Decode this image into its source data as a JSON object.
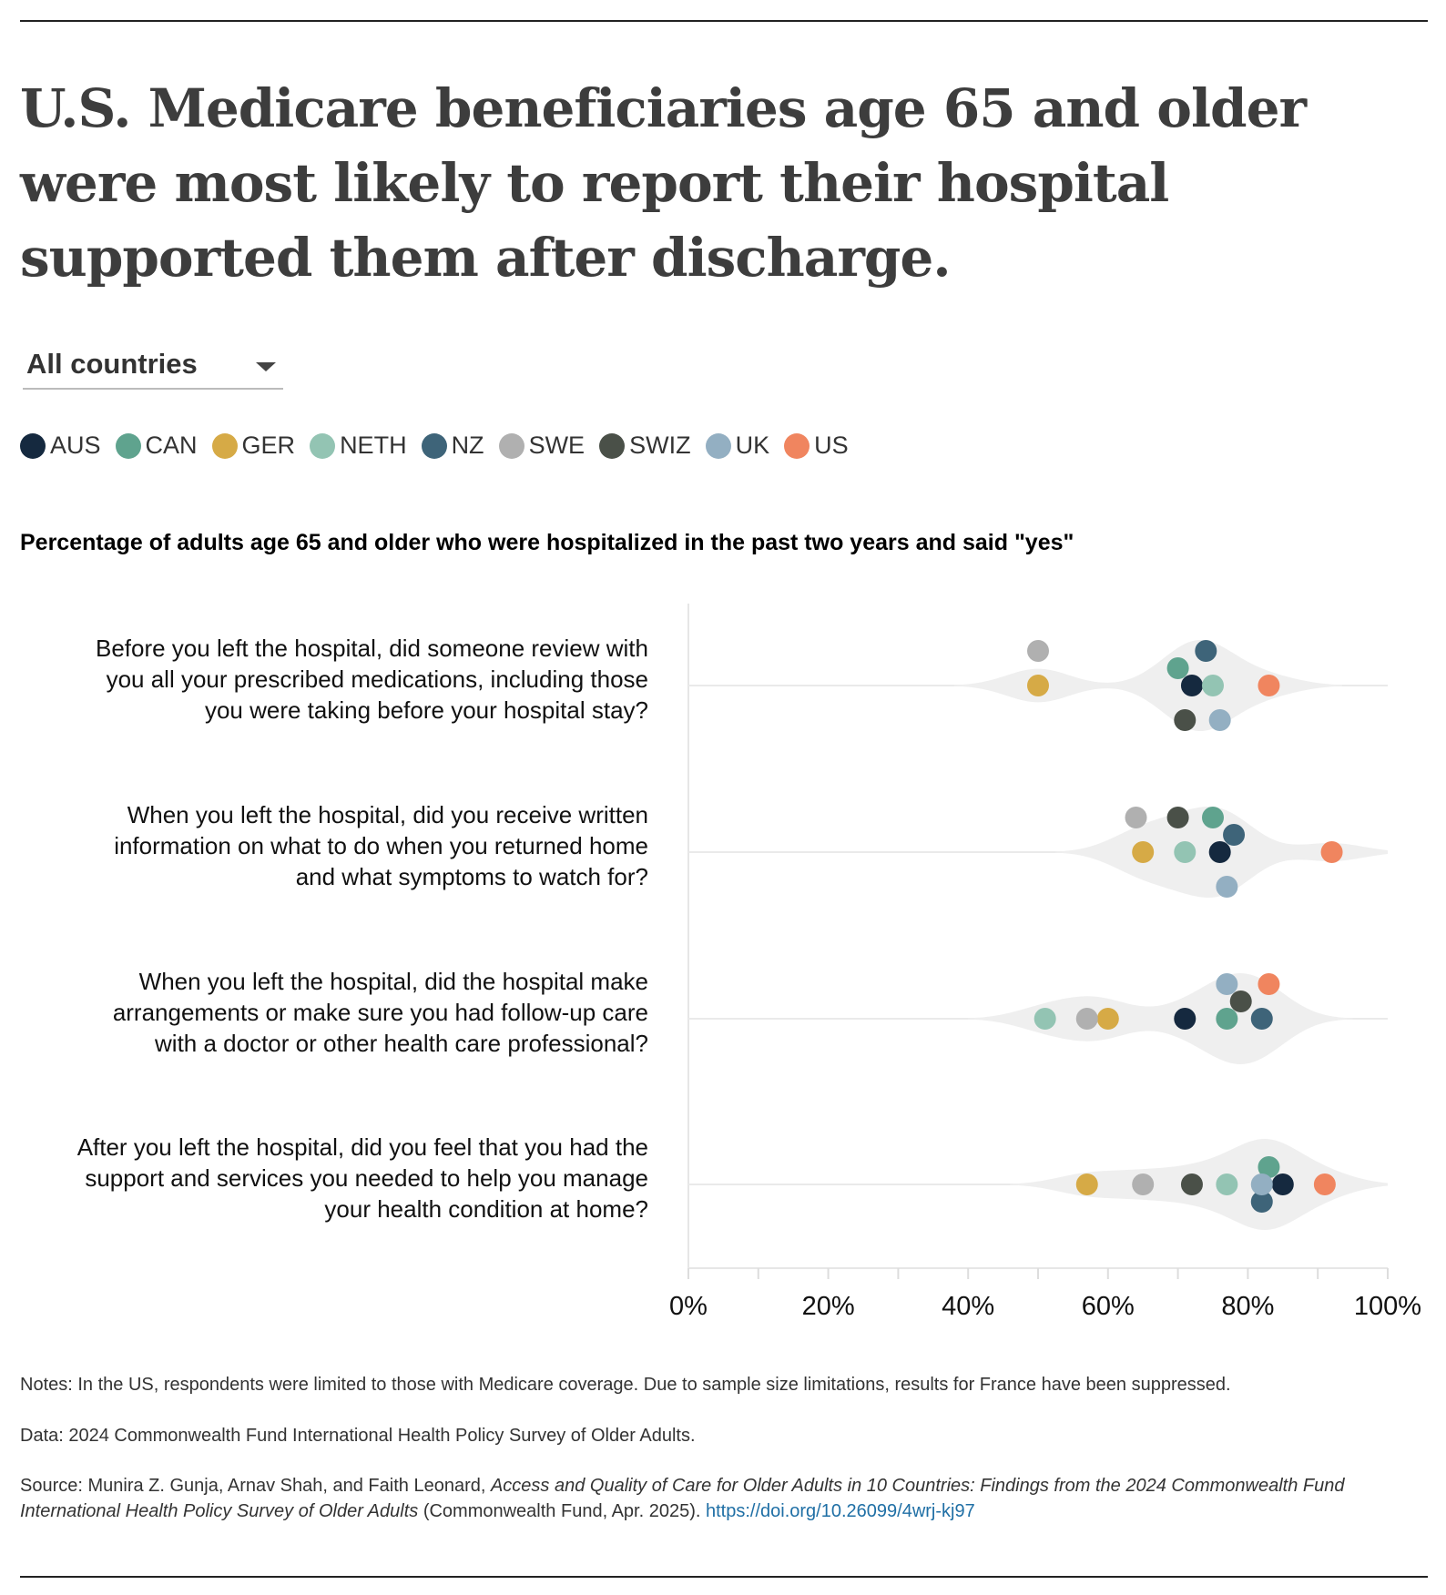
{
  "title": "U.S. Medicare beneficiaries age 65 and older were most likely to report their hospital supported them after discharge.",
  "dropdown": {
    "selected": "All countries",
    "icon": "caret-down-icon"
  },
  "legend": [
    {
      "label": "AUS",
      "color": "#15293f"
    },
    {
      "label": "CAN",
      "color": "#5fa38e"
    },
    {
      "label": "GER",
      "color": "#d6aa46"
    },
    {
      "label": "NETH",
      "color": "#93c4b3"
    },
    {
      "label": "NZ",
      "color": "#3e6479"
    },
    {
      "label": "SWE",
      "color": "#b0b0b0"
    },
    {
      "label": "SWIZ",
      "color": "#4a5048"
    },
    {
      "label": "UK",
      "color": "#93afc2"
    },
    {
      "label": "US",
      "color": "#f0855f"
    }
  ],
  "chart_data": {
    "type": "scatter",
    "subtitle": "Percentage of adults age 65 and older who were hospitalized in the past two years and said \"yes\"",
    "xlim": [
      0,
      100
    ],
    "x_ticks": [
      "0%",
      "20%",
      "40%",
      "60%",
      "80%",
      "100%"
    ],
    "categories": [
      [
        "Before you left the hospital, did someone review with",
        "you all your prescribed medications, including those",
        "you were taking before your hospital stay?"
      ],
      [
        "When you left the hospital, did you receive written",
        "information on what to do when you returned home",
        "and what symptoms to watch for?"
      ],
      [
        "When you left the hospital, did the hospital make",
        "arrangements or make sure you had follow-up care",
        "with a doctor or other health care professional?"
      ],
      [
        "After you left the hospital, did you feel that you had the",
        "support and services you needed to help you manage",
        "your health condition at home?"
      ]
    ],
    "series": [
      {
        "name": "AUS",
        "values": [
          72,
          76,
          71,
          85
        ]
      },
      {
        "name": "CAN",
        "values": [
          70,
          75,
          77,
          83
        ]
      },
      {
        "name": "GER",
        "values": [
          50,
          65,
          60,
          57
        ]
      },
      {
        "name": "NETH",
        "values": [
          75,
          71,
          51,
          77
        ]
      },
      {
        "name": "NZ",
        "values": [
          74,
          78,
          82,
          82
        ]
      },
      {
        "name": "SWE",
        "values": [
          50,
          64,
          57,
          65
        ]
      },
      {
        "name": "SWIZ",
        "values": [
          71,
          70,
          79,
          72
        ]
      },
      {
        "name": "UK",
        "values": [
          76,
          77,
          77,
          82
        ]
      },
      {
        "name": "US",
        "values": [
          83,
          92,
          83,
          91
        ]
      }
    ],
    "violin": true,
    "grid": false
  },
  "notes": {
    "notes": "Notes: In the US, respondents were limited to those with Medicare coverage. Due to sample size limitations, results for France have been suppressed.",
    "data": "Data: 2024 Commonwealth Fund International Health Policy Survey of Older Adults.",
    "source_prefix": "Source: Munira Z. Gunja, Arnav Shah, and Faith Leonard, ",
    "source_title": "Access and Quality of Care for Older Adults in 10 Countries: Findings from the 2024 Commonwealth Fund International Health Policy Survey of Older Adults",
    "source_suffix": " (Commonwealth Fund, Apr. 2025). ",
    "link": "https://doi.org/10.26099/4wrj-kj97"
  }
}
